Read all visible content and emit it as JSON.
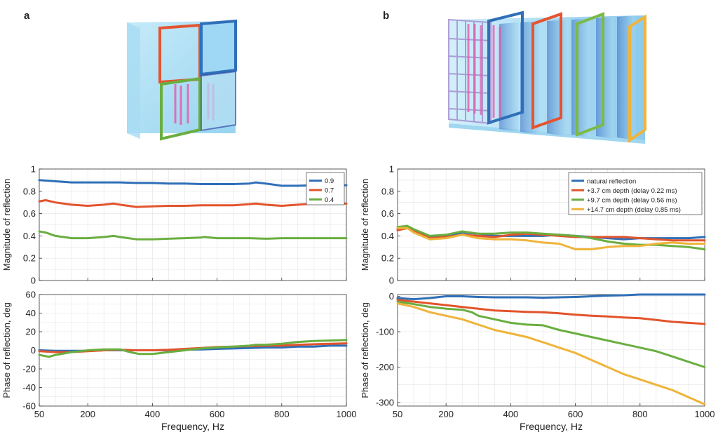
{
  "panels": {
    "a_label": "a",
    "b_label": "b"
  },
  "colors": {
    "blue": "#2f6fb8",
    "red": "#e2542c",
    "green": "#6aae40",
    "yellow": "#efb43a",
    "grid": "#e4e4e4"
  },
  "chart_data": [
    {
      "id": "a_mag",
      "type": "line",
      "xlabel": "",
      "ylabel": "Magnitude of reflection",
      "xlim": [
        50,
        1000
      ],
      "ylim": [
        0,
        1
      ],
      "yticks": [
        0,
        0.2,
        0.4,
        0.6,
        0.8,
        1
      ],
      "ytick_labels": [
        "0",
        "0.2",
        "0.4",
        "0.6",
        "0.8",
        "1"
      ],
      "xticks": [
        50,
        200,
        400,
        600,
        800,
        1000
      ],
      "xtick_labels": [],
      "grid": true,
      "legend_position": "top-right",
      "series": [
        {
          "name": "0.9",
          "color": "blue",
          "x": [
            50,
            100,
            150,
            200,
            250,
            300,
            350,
            400,
            450,
            500,
            550,
            600,
            650,
            700,
            720,
            750,
            800,
            850,
            900,
            950,
            1000
          ],
          "y": [
            0.9,
            0.89,
            0.88,
            0.88,
            0.88,
            0.88,
            0.875,
            0.875,
            0.87,
            0.87,
            0.865,
            0.865,
            0.865,
            0.87,
            0.88,
            0.87,
            0.85,
            0.85,
            0.855,
            0.855,
            0.855
          ]
        },
        {
          "name": "0.7",
          "color": "red",
          "x": [
            50,
            70,
            100,
            150,
            200,
            250,
            280,
            300,
            350,
            400,
            450,
            500,
            550,
            600,
            650,
            700,
            720,
            750,
            800,
            850,
            900,
            950,
            1000
          ],
          "y": [
            0.71,
            0.72,
            0.7,
            0.68,
            0.67,
            0.68,
            0.69,
            0.68,
            0.66,
            0.665,
            0.67,
            0.67,
            0.675,
            0.675,
            0.675,
            0.685,
            0.69,
            0.68,
            0.67,
            0.68,
            0.69,
            0.69,
            0.69
          ]
        },
        {
          "name": "0.4",
          "color": "green",
          "x": [
            50,
            70,
            100,
            150,
            200,
            250,
            280,
            300,
            350,
            400,
            450,
            500,
            550,
            560,
            600,
            650,
            700,
            750,
            800,
            850,
            900,
            950,
            1000
          ],
          "y": [
            0.44,
            0.43,
            0.4,
            0.38,
            0.38,
            0.39,
            0.4,
            0.39,
            0.37,
            0.37,
            0.375,
            0.38,
            0.385,
            0.39,
            0.38,
            0.38,
            0.38,
            0.375,
            0.38,
            0.38,
            0.38,
            0.38,
            0.38
          ]
        }
      ]
    },
    {
      "id": "a_phase",
      "type": "line",
      "xlabel": "Frequency, Hz",
      "ylabel": "Phase of reflection, deg",
      "xlim": [
        50,
        1000
      ],
      "ylim": [
        -60,
        60
      ],
      "yticks": [
        -60,
        -40,
        -20,
        0,
        20,
        40,
        60
      ],
      "ytick_labels": [
        "-60",
        "-40",
        "-20",
        "0",
        "20",
        "40",
        "60"
      ],
      "xticks": [
        50,
        200,
        400,
        600,
        800,
        1000
      ],
      "xtick_labels": [
        "50",
        "200",
        "400",
        "600",
        "800",
        "1000"
      ],
      "grid": true,
      "series": [
        {
          "name": "",
          "color": "blue",
          "x": [
            50,
            100,
            150,
            200,
            250,
            300,
            350,
            400,
            450,
            500,
            550,
            600,
            650,
            700,
            750,
            800,
            850,
            900,
            950,
            1000
          ],
          "y": [
            0,
            -0.5,
            -0.5,
            -0.5,
            0,
            0,
            0,
            0,
            0,
            0.5,
            1,
            1.5,
            2,
            2.5,
            3,
            3,
            4,
            4,
            5,
            5
          ]
        },
        {
          "name": "",
          "color": "red",
          "x": [
            50,
            100,
            150,
            200,
            250,
            300,
            350,
            400,
            450,
            500,
            550,
            600,
            650,
            700,
            750,
            800,
            850,
            900,
            950,
            1000
          ],
          "y": [
            -1,
            -2,
            -2,
            -1,
            0,
            0.5,
            0,
            0,
            0.5,
            1.5,
            2.5,
            3.5,
            4,
            4.5,
            5,
            5,
            6,
            6.5,
            7,
            7.5
          ]
        },
        {
          "name": "",
          "color": "green",
          "x": [
            50,
            80,
            100,
            150,
            200,
            250,
            300,
            330,
            360,
            400,
            450,
            500,
            550,
            600,
            650,
            700,
            720,
            750,
            800,
            850,
            900,
            950,
            1000
          ],
          "y": [
            -5,
            -7,
            -5,
            -2,
            0,
            1,
            1,
            -2,
            -4,
            -4,
            -2,
            0,
            2,
            3,
            4,
            5,
            6,
            6,
            7,
            9,
            10,
            10.5,
            11
          ]
        }
      ]
    },
    {
      "id": "b_mag",
      "type": "line",
      "xlabel": "",
      "ylabel": "Magnitude of reflection",
      "xlim": [
        50,
        1000
      ],
      "ylim": [
        0,
        1
      ],
      "yticks": [
        0,
        0.2,
        0.4,
        0.6,
        0.8,
        1
      ],
      "ytick_labels": [
        "0",
        "0.2",
        "0.4",
        "0.6",
        "0.8",
        "1"
      ],
      "xticks": [
        50,
        200,
        400,
        600,
        800,
        1000
      ],
      "xtick_labels": [],
      "grid": true,
      "legend_position": "top-right",
      "series": [
        {
          "name": "natural reflection",
          "color": "blue",
          "x": [
            50,
            80,
            100,
            150,
            200,
            250,
            300,
            350,
            400,
            450,
            500,
            550,
            600,
            650,
            700,
            750,
            800,
            850,
            900,
            950,
            1000
          ],
          "y": [
            0.46,
            0.48,
            0.45,
            0.39,
            0.4,
            0.43,
            0.42,
            0.4,
            0.4,
            0.4,
            0.4,
            0.41,
            0.4,
            0.39,
            0.38,
            0.37,
            0.38,
            0.38,
            0.38,
            0.38,
            0.39
          ]
        },
        {
          "name": "+3.7 cm depth (delay 0.22 ms)",
          "color": "red",
          "x": [
            50,
            80,
            100,
            150,
            200,
            250,
            300,
            350,
            400,
            450,
            500,
            550,
            600,
            650,
            700,
            750,
            800,
            850,
            900,
            950,
            1000
          ],
          "y": [
            0.45,
            0.47,
            0.44,
            0.38,
            0.39,
            0.41,
            0.4,
            0.39,
            0.41,
            0.42,
            0.41,
            0.4,
            0.39,
            0.39,
            0.39,
            0.39,
            0.38,
            0.37,
            0.36,
            0.36,
            0.36
          ]
        },
        {
          "name": "+9.7 cm depth (delay 0.56 ms)",
          "color": "green",
          "x": [
            50,
            80,
            100,
            150,
            200,
            250,
            300,
            350,
            400,
            450,
            500,
            550,
            600,
            650,
            700,
            750,
            800,
            850,
            900,
            950,
            1000
          ],
          "y": [
            0.48,
            0.49,
            0.46,
            0.4,
            0.41,
            0.44,
            0.42,
            0.42,
            0.43,
            0.43,
            0.42,
            0.41,
            0.4,
            0.38,
            0.35,
            0.33,
            0.32,
            0.32,
            0.31,
            0.3,
            0.28
          ]
        },
        {
          "name": "+14.7 cm depth (delay 0.85 ms)",
          "color": "yellow",
          "x": [
            50,
            80,
            100,
            150,
            200,
            250,
            300,
            350,
            400,
            450,
            500,
            550,
            600,
            650,
            700,
            750,
            800,
            850,
            900,
            950,
            1000
          ],
          "y": [
            0.47,
            0.47,
            0.43,
            0.37,
            0.38,
            0.41,
            0.38,
            0.37,
            0.37,
            0.36,
            0.34,
            0.33,
            0.28,
            0.28,
            0.3,
            0.31,
            0.31,
            0.33,
            0.34,
            0.33,
            0.33
          ]
        }
      ]
    },
    {
      "id": "b_phase",
      "type": "line",
      "xlabel": "Frequency, Hz",
      "ylabel": "Phase of reflection, deg",
      "xlim": [
        50,
        1000
      ],
      "ylim": [
        -310,
        5
      ],
      "yticks": [
        -300,
        -200,
        -100,
        0
      ],
      "ytick_labels": [
        "-300",
        "-200",
        "-100",
        "0"
      ],
      "xticks": [
        50,
        200,
        400,
        600,
        800,
        1000
      ],
      "xtick_labels": [
        "50",
        "200",
        "400",
        "600",
        "800",
        "1000"
      ],
      "grid": true,
      "series": [
        {
          "name": "",
          "color": "blue",
          "x": [
            50,
            100,
            150,
            200,
            250,
            300,
            350,
            400,
            450,
            500,
            550,
            600,
            650,
            700,
            750,
            800,
            850,
            900,
            950,
            1000
          ],
          "y": [
            -5,
            -8,
            -5,
            0,
            0,
            -2,
            -3,
            -3,
            -3,
            -4,
            -3,
            -2,
            0,
            2,
            3,
            5,
            5,
            5,
            5,
            5
          ]
        },
        {
          "name": "",
          "color": "red",
          "x": [
            50,
            100,
            150,
            200,
            250,
            300,
            350,
            400,
            450,
            500,
            550,
            600,
            650,
            700,
            750,
            800,
            850,
            900,
            950,
            1000
          ],
          "y": [
            -10,
            -15,
            -20,
            -25,
            -30,
            -35,
            -40,
            -42,
            -44,
            -45,
            -48,
            -52,
            -55,
            -57,
            -60,
            -62,
            -67,
            -72,
            -75,
            -78
          ]
        },
        {
          "name": "",
          "color": "green",
          "x": [
            50,
            100,
            150,
            200,
            250,
            280,
            300,
            350,
            400,
            450,
            500,
            550,
            600,
            650,
            700,
            750,
            800,
            850,
            900,
            950,
            1000
          ],
          "y": [
            -15,
            -22,
            -30,
            -35,
            -38,
            -45,
            -55,
            -65,
            -75,
            -80,
            -82,
            -95,
            -105,
            -115,
            -125,
            -135,
            -145,
            -155,
            -170,
            -185,
            -200
          ]
        },
        {
          "name": "",
          "color": "yellow",
          "x": [
            50,
            100,
            150,
            200,
            250,
            300,
            350,
            400,
            450,
            500,
            550,
            600,
            650,
            700,
            750,
            800,
            850,
            900,
            950,
            1000
          ],
          "y": [
            -20,
            -30,
            -45,
            -55,
            -65,
            -80,
            -95,
            -105,
            -115,
            -130,
            -145,
            -160,
            -180,
            -200,
            -220,
            -235,
            -250,
            -265,
            -285,
            -305
          ]
        }
      ]
    }
  ]
}
